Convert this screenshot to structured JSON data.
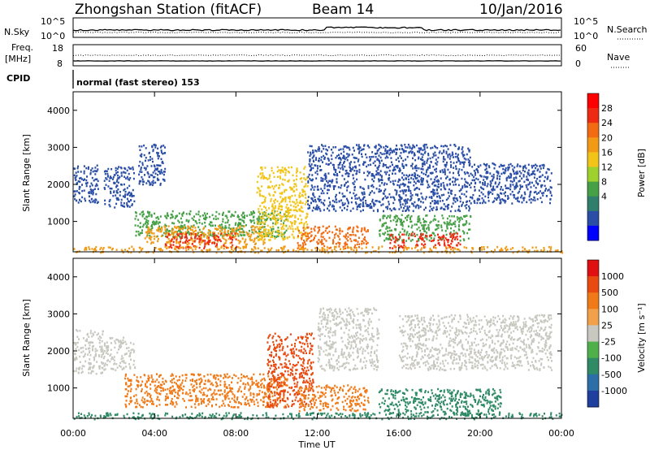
{
  "header": {
    "station": "Zhongshan Station (fitACF)",
    "beam": "Beam 14",
    "date": "10/Jan/2016"
  },
  "top_panels": {
    "nsky_label": "N.Sky",
    "nsearch_label": "N.Search",
    "nsky_ticks": [
      "10^5",
      "10^0"
    ],
    "nsearch_ticks": [
      "10^5",
      "10^0"
    ],
    "freq_label": "Freq.",
    "freq_unit": "[MHz]",
    "freq_ticks": [
      "18",
      "8"
    ],
    "nave_label": "Nave",
    "nave_ticks": [
      "60",
      "0"
    ],
    "cpid_label": "CPID",
    "cpid_text": "normal (fast stereo) 153"
  },
  "chart_data": [
    {
      "type": "heatmap",
      "name": "power",
      "ylabel": "Slant Range [km]",
      "yticks": [
        "4000",
        "3000",
        "2000",
        "1000"
      ],
      "ylim": [
        180,
        4500
      ],
      "colorbar": {
        "label": "Power [dB]",
        "ticks": [
          "28",
          "24",
          "20",
          "16",
          "12",
          "8",
          "4"
        ],
        "colors": [
          "#0000ff",
          "#2a4ea6",
          "#2f7f6c",
          "#46a046",
          "#9fd12e",
          "#f2c418",
          "#f29a16",
          "#f26a12",
          "#ee2a12",
          "#ff0000"
        ]
      },
      "regions": [
        {
          "x": [
            0.0,
            1.2
          ],
          "y": [
            1500,
            2600
          ],
          "color": "#2a4ea6"
        },
        {
          "x": [
            1.5,
            3.0
          ],
          "y": [
            1400,
            2500
          ],
          "color": "#2a4ea6"
        },
        {
          "x": [
            3.2,
            4.5
          ],
          "y": [
            2000,
            3100
          ],
          "color": "#2a4ea6"
        },
        {
          "x": [
            3.0,
            10.5
          ],
          "y": [
            600,
            1300
          ],
          "color": "#46a046"
        },
        {
          "x": [
            3.5,
            9.5
          ],
          "y": [
            400,
            900
          ],
          "color": "#f29a16"
        },
        {
          "x": [
            4.5,
            8.0
          ],
          "y": [
            300,
            700
          ],
          "color": "#ee2a12"
        },
        {
          "x": [
            9.0,
            11.5
          ],
          "y": [
            500,
            2500
          ],
          "color": "#f2c418"
        },
        {
          "x": [
            11.0,
            14.5
          ],
          "y": [
            300,
            900
          ],
          "color": "#f26a12"
        },
        {
          "x": [
            11.5,
            19.5
          ],
          "y": [
            1300,
            3100
          ],
          "color": "#2a4ea6"
        },
        {
          "x": [
            15.0,
            19.5
          ],
          "y": [
            500,
            1200
          ],
          "color": "#46a046"
        },
        {
          "x": [
            15.5,
            19.0
          ],
          "y": [
            300,
            700
          ],
          "color": "#ee2a12"
        },
        {
          "x": [
            19.5,
            23.5
          ],
          "y": [
            1500,
            2600
          ],
          "color": "#2a4ea6"
        },
        {
          "x": [
            0.0,
            24.0
          ],
          "y": [
            180,
            350
          ],
          "color": "#f29a16"
        }
      ]
    },
    {
      "type": "heatmap",
      "name": "velocity",
      "xlabel": "Time UT",
      "ylabel": "Slant Range [km]",
      "xticks": [
        "00:00",
        "04:00",
        "08:00",
        "12:00",
        "16:00",
        "20:00",
        "00:00"
      ],
      "xlim": [
        0,
        24
      ],
      "yticks": [
        "4000",
        "3000",
        "2000",
        "1000"
      ],
      "ylim": [
        180,
        4500
      ],
      "colorbar": {
        "label": "Velocity [m s⁻¹]",
        "ticks": [
          "1000",
          "500",
          "100",
          "25",
          "-25",
          "-100",
          "-500",
          "-1000"
        ],
        "colors": [
          "#1f3f9f",
          "#2c6fa8",
          "#2f8a66",
          "#4fb04a",
          "#c8c8c0",
          "#f2a04a",
          "#f07a18",
          "#e84a10",
          "#e01010"
        ]
      },
      "regions": [
        {
          "x": [
            0.0,
            1.5
          ],
          "y": [
            1400,
            2600
          ],
          "color": "#c8c8c0"
        },
        {
          "x": [
            1.5,
            3.0
          ],
          "y": [
            1500,
            2400
          ],
          "color": "#c8c8c0"
        },
        {
          "x": [
            2.5,
            10.5
          ],
          "y": [
            500,
            1400
          ],
          "color": "#f07a18"
        },
        {
          "x": [
            9.5,
            11.8
          ],
          "y": [
            500,
            2500
          ],
          "color": "#e84a10"
        },
        {
          "x": [
            11.0,
            14.5
          ],
          "y": [
            400,
            1100
          ],
          "color": "#f07a18"
        },
        {
          "x": [
            12.0,
            15.0
          ],
          "y": [
            1500,
            3200
          ],
          "color": "#c8c8c0"
        },
        {
          "x": [
            15.0,
            21.0
          ],
          "y": [
            300,
            1000
          ],
          "color": "#2f8a66"
        },
        {
          "x": [
            16.0,
            23.5
          ],
          "y": [
            1500,
            3000
          ],
          "color": "#c8c8c0"
        },
        {
          "x": [
            0.0,
            24.0
          ],
          "y": [
            180,
            350
          ],
          "color": "#2f8a66"
        }
      ]
    }
  ]
}
